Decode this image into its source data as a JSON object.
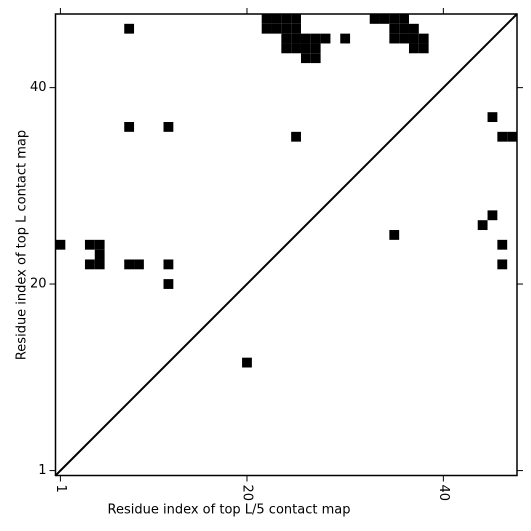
{
  "chart_data": {
    "type": "contact-map",
    "xlabel": "Residue index of top L/5 contact map",
    "ylabel": "Residue index of top L contact map",
    "color": "#000000",
    "x": [
      8,
      22,
      23,
      24,
      25,
      22,
      23,
      24,
      25,
      24,
      25,
      26,
      27,
      28,
      24,
      25,
      26,
      27,
      26,
      27,
      30,
      33,
      34,
      35,
      36,
      35,
      36,
      37,
      35,
      36,
      37,
      38,
      37,
      38,
      8,
      12,
      25,
      45,
      46,
      47,
      45,
      44,
      35,
      46,
      46,
      1,
      4,
      5,
      5,
      4,
      5,
      8,
      9,
      12,
      12,
      20
    ],
    "y": [
      46,
      47,
      47,
      47,
      47,
      46,
      46,
      46,
      46,
      45,
      45,
      45,
      45,
      45,
      44,
      44,
      44,
      44,
      43,
      43,
      45,
      47,
      47,
      47,
      47,
      46,
      46,
      46,
      45,
      45,
      45,
      45,
      44,
      44,
      36,
      36,
      35,
      37,
      35,
      35,
      27,
      26,
      25,
      24,
      22,
      24,
      24,
      24,
      23,
      22,
      22,
      22,
      22,
      22,
      20,
      12
    ],
    "xlim": [
      0.5,
      47.5
    ],
    "ylim": [
      0.5,
      47.5
    ],
    "xticks": [
      1,
      20,
      40
    ],
    "yticks": [
      1,
      20,
      40
    ]
  }
}
